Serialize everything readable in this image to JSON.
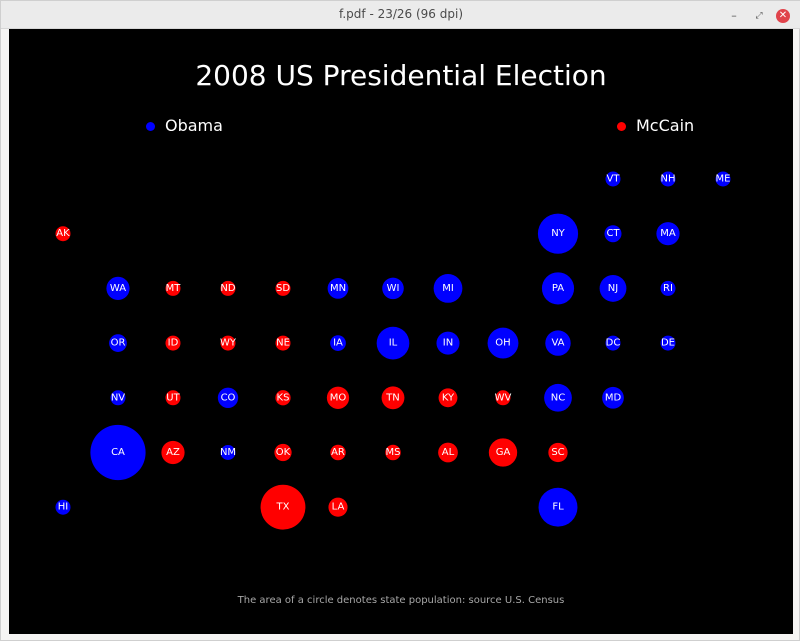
{
  "window": {
    "title": "f.pdf - 23/26 (96 dpi)",
    "minimize_glyph": "–",
    "maximize_glyph": "⤢",
    "close_glyph": "✕"
  },
  "colors": {
    "obama": "#0000ff",
    "mccain": "#ff0000",
    "background": "#000000"
  },
  "chart_data": {
    "type": "scatter",
    "title": "2008 US Presidential Election",
    "legend": [
      {
        "name": "Obama",
        "color": "#0000ff",
        "position": "top-left"
      },
      {
        "name": "McCain",
        "color": "#ff0000",
        "position": "top-right"
      }
    ],
    "footnote": "The area of a circle denotes state population: source U.S. Census",
    "states": [
      {
        "abbr": "VT",
        "winner": "Obama",
        "col": 10,
        "row": 0,
        "population": 0.6
      },
      {
        "abbr": "NH",
        "winner": "Obama",
        "col": 11,
        "row": 0,
        "population": 1.3
      },
      {
        "abbr": "ME",
        "winner": "Obama",
        "col": 12,
        "row": 0,
        "population": 1.3
      },
      {
        "abbr": "AK",
        "winner": "McCain",
        "col": 0,
        "row": 1,
        "population": 0.7
      },
      {
        "abbr": "NY",
        "winner": "Obama",
        "col": 9,
        "row": 1,
        "population": 19.5
      },
      {
        "abbr": "CT",
        "winner": "Obama",
        "col": 10,
        "row": 1,
        "population": 3.5
      },
      {
        "abbr": "MA",
        "winner": "Obama",
        "col": 11,
        "row": 1,
        "population": 6.5
      },
      {
        "abbr": "WA",
        "winner": "Obama",
        "col": 1,
        "row": 2,
        "population": 6.5
      },
      {
        "abbr": "MT",
        "winner": "McCain",
        "col": 2,
        "row": 2,
        "population": 1.0
      },
      {
        "abbr": "ND",
        "winner": "McCain",
        "col": 3,
        "row": 2,
        "population": 0.65
      },
      {
        "abbr": "SD",
        "winner": "McCain",
        "col": 4,
        "row": 2,
        "population": 0.8
      },
      {
        "abbr": "MN",
        "winner": "Obama",
        "col": 5,
        "row": 2,
        "population": 5.2
      },
      {
        "abbr": "WI",
        "winner": "Obama",
        "col": 6,
        "row": 2,
        "population": 5.6
      },
      {
        "abbr": "MI",
        "winner": "Obama",
        "col": 7,
        "row": 2,
        "population": 10.0
      },
      {
        "abbr": "PA",
        "winner": "Obama",
        "col": 9,
        "row": 2,
        "population": 12.5
      },
      {
        "abbr": "NJ",
        "winner": "Obama",
        "col": 10,
        "row": 2,
        "population": 8.7
      },
      {
        "abbr": "RI",
        "winner": "Obama",
        "col": 11,
        "row": 2,
        "population": 1.05
      },
      {
        "abbr": "OR",
        "winner": "Obama",
        "col": 1,
        "row": 3,
        "population": 3.8
      },
      {
        "abbr": "ID",
        "winner": "McCain",
        "col": 2,
        "row": 3,
        "population": 1.5
      },
      {
        "abbr": "WY",
        "winner": "McCain",
        "col": 3,
        "row": 3,
        "population": 0.55
      },
      {
        "abbr": "NE",
        "winner": "McCain",
        "col": 4,
        "row": 3,
        "population": 1.8
      },
      {
        "abbr": "IA",
        "winner": "Obama",
        "col": 5,
        "row": 3,
        "population": 3.0
      },
      {
        "abbr": "IL",
        "winner": "Obama",
        "col": 6,
        "row": 3,
        "population": 12.9
      },
      {
        "abbr": "IN",
        "winner": "Obama",
        "col": 7,
        "row": 3,
        "population": 6.4
      },
      {
        "abbr": "OH",
        "winner": "Obama",
        "col": 8,
        "row": 3,
        "population": 11.5
      },
      {
        "abbr": "VA",
        "winner": "Obama",
        "col": 9,
        "row": 3,
        "population": 7.8
      },
      {
        "abbr": "DC",
        "winner": "Obama",
        "col": 10,
        "row": 3,
        "population": 0.6
      },
      {
        "abbr": "DE",
        "winner": "Obama",
        "col": 11,
        "row": 3,
        "population": 0.9
      },
      {
        "abbr": "NV",
        "winner": "Obama",
        "col": 1,
        "row": 4,
        "population": 2.6
      },
      {
        "abbr": "UT",
        "winner": "McCain",
        "col": 2,
        "row": 4,
        "population": 2.7
      },
      {
        "abbr": "CO",
        "winner": "Obama",
        "col": 3,
        "row": 4,
        "population": 5.0
      },
      {
        "abbr": "KS",
        "winner": "McCain",
        "col": 4,
        "row": 4,
        "population": 2.8
      },
      {
        "abbr": "MO",
        "winner": "McCain",
        "col": 5,
        "row": 4,
        "population": 6.0
      },
      {
        "abbr": "TN",
        "winner": "McCain",
        "col": 6,
        "row": 4,
        "population": 6.3
      },
      {
        "abbr": "KY",
        "winner": "McCain",
        "col": 7,
        "row": 4,
        "population": 4.3
      },
      {
        "abbr": "WV",
        "winner": "McCain",
        "col": 8,
        "row": 4,
        "population": 1.8
      },
      {
        "abbr": "NC",
        "winner": "Obama",
        "col": 9,
        "row": 4,
        "population": 9.3
      },
      {
        "abbr": "MD",
        "winner": "Obama",
        "col": 10,
        "row": 4,
        "population": 5.7
      },
      {
        "abbr": "CA",
        "winner": "Obama",
        "col": 1,
        "row": 5,
        "population": 36.8
      },
      {
        "abbr": "AZ",
        "winner": "McCain",
        "col": 2,
        "row": 5,
        "population": 6.5
      },
      {
        "abbr": "NM",
        "winner": "Obama",
        "col": 3,
        "row": 5,
        "population": 2.0
      },
      {
        "abbr": "OK",
        "winner": "McCain",
        "col": 4,
        "row": 5,
        "population": 3.6
      },
      {
        "abbr": "AR",
        "winner": "McCain",
        "col": 5,
        "row": 5,
        "population": 2.9
      },
      {
        "abbr": "MS",
        "winner": "McCain",
        "col": 6,
        "row": 5,
        "population": 2.9
      },
      {
        "abbr": "AL",
        "winner": "McCain",
        "col": 7,
        "row": 5,
        "population": 4.7
      },
      {
        "abbr": "GA",
        "winner": "McCain",
        "col": 8,
        "row": 5,
        "population": 9.7
      },
      {
        "abbr": "SC",
        "winner": "McCain",
        "col": 9,
        "row": 5,
        "population": 4.5
      },
      {
        "abbr": "HI",
        "winner": "Obama",
        "col": 0,
        "row": 6,
        "population": 1.3
      },
      {
        "abbr": "TX",
        "winner": "McCain",
        "col": 4,
        "row": 6,
        "population": 24.3
      },
      {
        "abbr": "LA",
        "winner": "McCain",
        "col": 5,
        "row": 6,
        "population": 4.4
      },
      {
        "abbr": "FL",
        "winner": "Obama",
        "col": 9,
        "row": 6,
        "population": 18.3
      }
    ]
  }
}
